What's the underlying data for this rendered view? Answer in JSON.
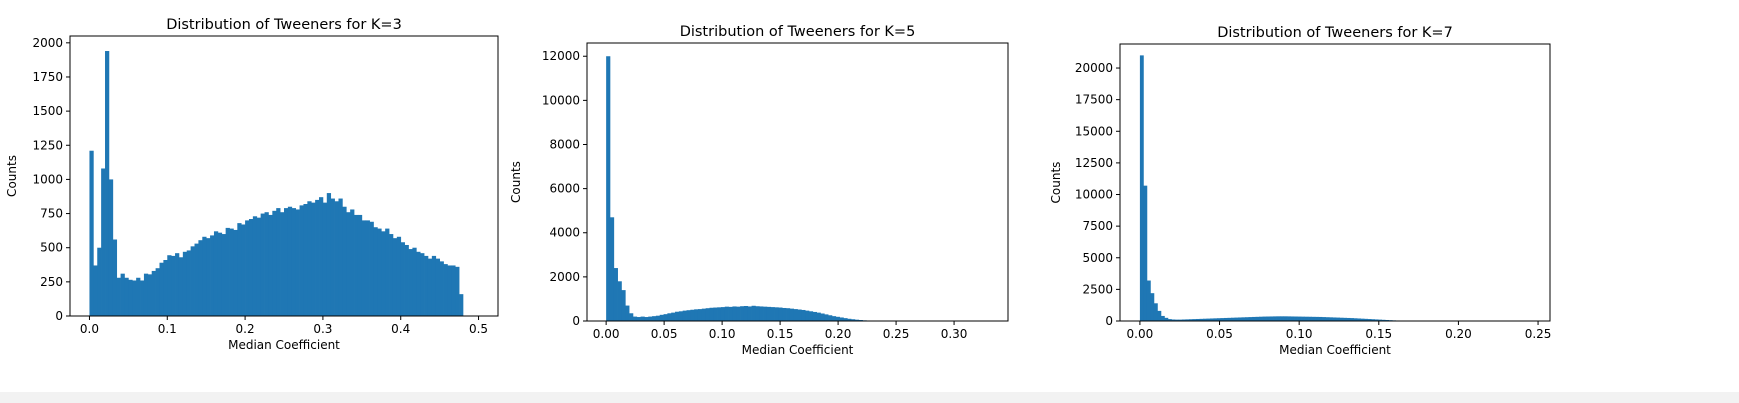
{
  "chart_data": [
    {
      "type": "bar",
      "title": "Distribution of Tweeners for K=3",
      "xlabel": "Median Coefficient",
      "ylabel": "Counts",
      "xlim": [
        -0.025,
        0.525
      ],
      "ylim": [
        0,
        2050
      ],
      "xticks": [
        0.0,
        0.1,
        0.2,
        0.3,
        0.4,
        0.5
      ],
      "xtick_labels": [
        "0.0",
        "0.1",
        "0.2",
        "0.3",
        "0.4",
        "0.5"
      ],
      "yticks": [
        0,
        250,
        500,
        750,
        1000,
        1250,
        1500,
        1750,
        2000
      ],
      "ytick_labels": [
        "0",
        "250",
        "500",
        "750",
        "1000",
        "1250",
        "1500",
        "1750",
        "2000"
      ],
      "grid": false,
      "color": "#1f77b4",
      "bin_start": 0.0,
      "bin_width": 0.005,
      "values": [
        1210,
        370,
        500,
        1080,
        1940,
        1000,
        560,
        280,
        310,
        280,
        265,
        260,
        280,
        260,
        310,
        305,
        330,
        350,
        390,
        410,
        445,
        440,
        460,
        430,
        470,
        480,
        510,
        530,
        555,
        580,
        570,
        590,
        620,
        610,
        600,
        645,
        640,
        630,
        680,
        670,
        700,
        710,
        730,
        720,
        750,
        760,
        740,
        770,
        790,
        760,
        790,
        800,
        790,
        780,
        810,
        820,
        840,
        830,
        850,
        870,
        830,
        900,
        860,
        840,
        860,
        800,
        760,
        780,
        740,
        740,
        700,
        700,
        690,
        650,
        640,
        620,
        640,
        600,
        570,
        580,
        540,
        520,
        490,
        500,
        470,
        460,
        440,
        420,
        440,
        420,
        400,
        380,
        370,
        370,
        360,
        160
      ]
    },
    {
      "type": "bar",
      "title": "Distribution of Tweeners for K=5",
      "xlabel": "Median Coefficient",
      "ylabel": "Counts",
      "xlim": [
        -0.0165,
        0.3465
      ],
      "ylim": [
        0,
        12600
      ],
      "xticks": [
        0.0,
        0.05,
        0.1,
        0.15,
        0.2,
        0.25,
        0.3
      ],
      "xtick_labels": [
        "0.00",
        "0.05",
        "0.10",
        "0.15",
        "0.20",
        "0.25",
        "0.30"
      ],
      "yticks": [
        0,
        2000,
        4000,
        6000,
        8000,
        10000,
        12000
      ],
      "ytick_labels": [
        "0",
        "2000",
        "4000",
        "6000",
        "8000",
        "10000",
        "12000"
      ],
      "grid": false,
      "color": "#1f77b4",
      "bin_start": 0.0,
      "bin_width": 0.0033,
      "values": [
        12000,
        4700,
        2400,
        1800,
        1400,
        700,
        350,
        200,
        180,
        200,
        180,
        200,
        220,
        240,
        280,
        310,
        350,
        380,
        420,
        440,
        470,
        490,
        510,
        530,
        540,
        560,
        580,
        600,
        610,
        620,
        630,
        650,
        640,
        660,
        650,
        670,
        680,
        660,
        690,
        670,
        660,
        650,
        640,
        630,
        620,
        610,
        590,
        580,
        560,
        540,
        520,
        500,
        470,
        440,
        410,
        380,
        340,
        300,
        260,
        220,
        190,
        160,
        130,
        100,
        80,
        60,
        45,
        30,
        20,
        12,
        8,
        5,
        3,
        2,
        1,
        1,
        0,
        0,
        0,
        0,
        0,
        0,
        0,
        0,
        0,
        0,
        0,
        0,
        0,
        0,
        0,
        0,
        0,
        0,
        0,
        0,
        0,
        0,
        0,
        0
      ]
    },
    {
      "type": "bar",
      "title": "Distribution of Tweeners for K=7",
      "xlabel": "Median Coefficient",
      "ylabel": "Counts",
      "xlim": [
        -0.0125,
        0.2575
      ],
      "ylim": [
        0,
        21900
      ],
      "xticks": [
        0.0,
        0.05,
        0.1,
        0.15,
        0.2,
        0.25
      ],
      "xtick_labels": [
        "0.00",
        "0.05",
        "0.10",
        "0.15",
        "0.20",
        "0.25"
      ],
      "yticks": [
        0,
        2500,
        5000,
        7500,
        10000,
        12500,
        15000,
        17500,
        20000
      ],
      "ytick_labels": [
        "0",
        "2500",
        "5000",
        "7500",
        "10000",
        "12500",
        "15000",
        "17500",
        "20000"
      ],
      "grid": false,
      "color": "#1f77b4",
      "bin_start": 0.0,
      "bin_width": 0.0022,
      "values": [
        21000,
        10700,
        3200,
        2200,
        1400,
        800,
        400,
        250,
        150,
        120,
        110,
        110,
        120,
        130,
        140,
        150,
        160,
        170,
        180,
        190,
        200,
        210,
        220,
        230,
        240,
        250,
        260,
        270,
        280,
        290,
        300,
        310,
        320,
        330,
        340,
        350,
        355,
        360,
        365,
        370,
        370,
        370,
        365,
        360,
        355,
        350,
        345,
        340,
        335,
        330,
        325,
        320,
        310,
        300,
        290,
        280,
        270,
        260,
        250,
        240,
        230,
        215,
        200,
        185,
        170,
        155,
        140,
        125,
        110,
        95,
        80,
        65,
        50,
        40,
        30,
        22,
        15,
        10,
        7,
        5,
        3,
        2,
        1,
        1,
        0,
        0,
        0,
        0,
        0,
        0,
        0,
        0,
        0,
        0,
        0,
        0,
        0,
        0,
        0,
        0
      ]
    }
  ]
}
